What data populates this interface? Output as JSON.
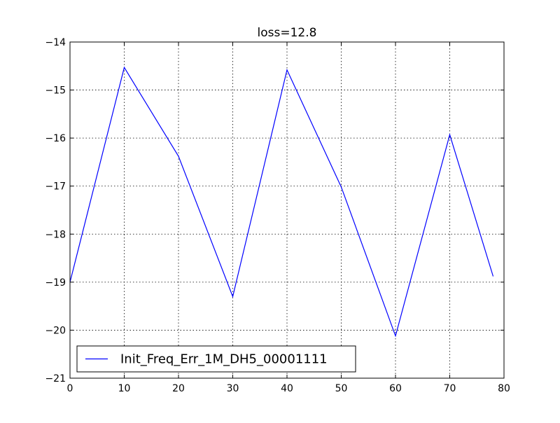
{
  "chart_data": {
    "type": "line",
    "title": "loss=12.8",
    "xlabel": "",
    "ylabel": "",
    "xlim": [
      0,
      80
    ],
    "ylim": [
      -21,
      -14
    ],
    "x_ticks": [
      0,
      10,
      20,
      30,
      40,
      50,
      60,
      70,
      80
    ],
    "y_ticks": [
      -21,
      -20,
      -19,
      -18,
      -17,
      -16,
      -15,
      -14
    ],
    "x_tick_labels": [
      "0",
      "10",
      "20",
      "30",
      "40",
      "50",
      "60",
      "70",
      "80"
    ],
    "y_tick_labels": [
      "−21",
      "−20",
      "−19",
      "−18",
      "−17",
      "−16",
      "−15",
      "−14"
    ],
    "grid": true,
    "legend_position": "lower-left",
    "series": [
      {
        "name": "Init_Freq_Err_1M_DH5_00001111",
        "color": "#0000ff",
        "x": [
          0,
          10,
          20,
          30,
          40,
          50,
          60,
          70,
          78
        ],
        "y": [
          -19.0,
          -14.53,
          -16.38,
          -19.3,
          -14.58,
          -17.02,
          -20.12,
          -15.93,
          -18.88
        ]
      }
    ]
  }
}
